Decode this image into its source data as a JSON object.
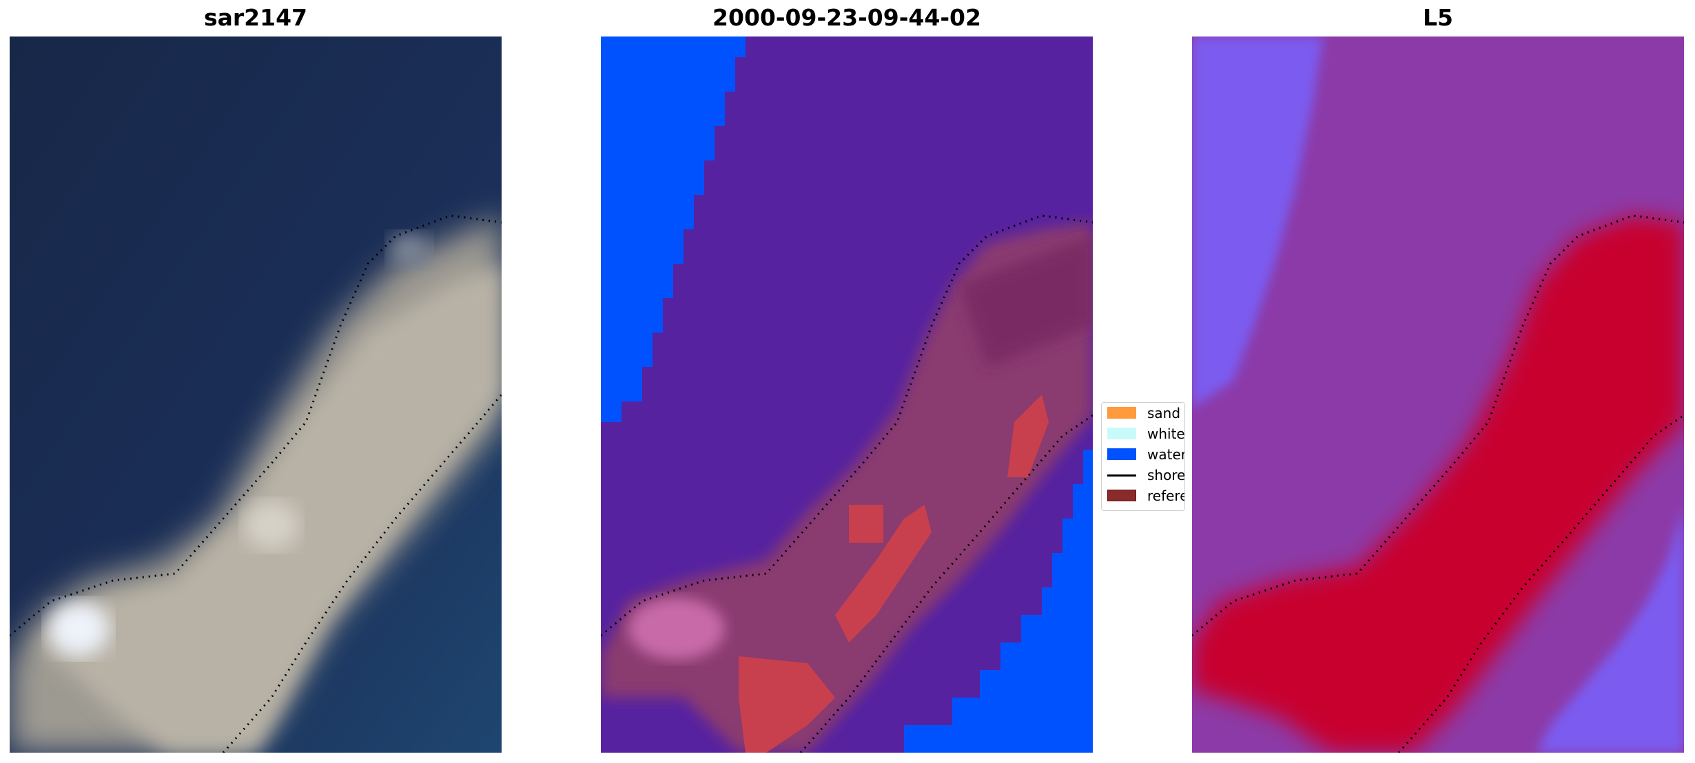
{
  "panels": [
    {
      "title": "sar2147",
      "kind": "rgb"
    },
    {
      "title": "2000-09-23-09-44-02",
      "kind": "classified"
    },
    {
      "title": "L5",
      "kind": "probability"
    }
  ],
  "legend": {
    "items": [
      {
        "label": "sand",
        "color": "#ff9a3d",
        "type": "patch"
      },
      {
        "label": "whitewater",
        "color": "#c8fafa",
        "type": "patch"
      },
      {
        "label": "water",
        "color": "#0052ff",
        "type": "patch"
      },
      {
        "label": "shoreline",
        "color": "#000000",
        "type": "line"
      },
      {
        "label": "reference shoreline",
        "color": "#8b2a2a",
        "type": "patch"
      }
    ]
  },
  "colors": {
    "sea_dark": "#1a2a52",
    "sea_deep": "#1d3a66",
    "land_rgb": "#b6b0a4",
    "class_other": "#5622a0",
    "class_water": "#0052ff",
    "class_land": "#8a3a70",
    "class_sand": "#c8404e",
    "prob_low": "#7c5cf0",
    "prob_mid": "#8c3aa8",
    "prob_high": "#c8002e"
  }
}
